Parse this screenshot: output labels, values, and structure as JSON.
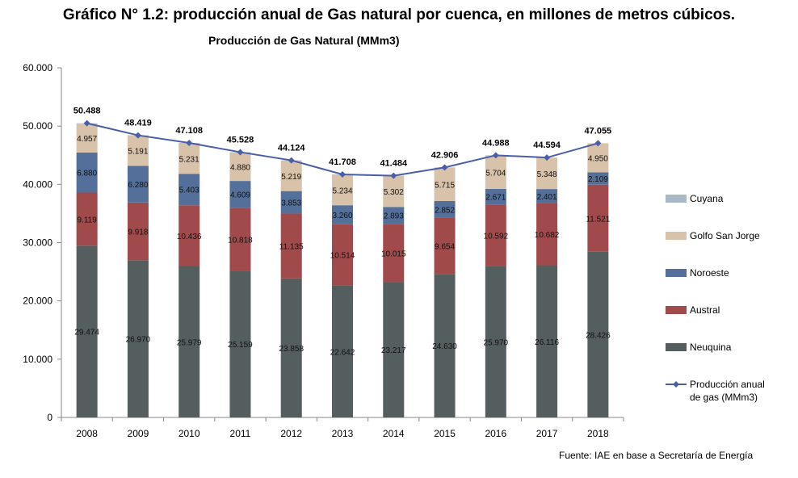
{
  "title": "Gráfico N° 1.2: producción anual de Gas natural por cuenca, en millones de metros cúbicos.",
  "source": "Fuente: IAE en base a Secretaría de Energía",
  "chart_data": {
    "type": "bar",
    "stacked": true,
    "title": "Producción de Gas Natural (MMm3)",
    "categories": [
      "2008",
      "2009",
      "2010",
      "2011",
      "2012",
      "2013",
      "2014",
      "2015",
      "2016",
      "2017",
      "2018"
    ],
    "ylim": [
      0,
      60000
    ],
    "yticks": [
      0,
      10000,
      20000,
      30000,
      40000,
      50000,
      60000
    ],
    "ytick_labels": [
      "0",
      "10.000",
      "20.000",
      "30.000",
      "40.000",
      "50.000",
      "60.000"
    ],
    "legend_position": "right",
    "series": [
      {
        "name": "Neuquina",
        "color": "#555e5e",
        "values": [
          29474,
          26970,
          25979,
          25159,
          23858,
          22642,
          23217,
          24630,
          25970,
          26116,
          28426
        ],
        "labels": [
          "29.474",
          "26.970",
          "25.979",
          "25.159",
          "23.858",
          "22.642",
          "23.217",
          "24.630",
          "25.970",
          "26.116",
          "28.426"
        ]
      },
      {
        "name": "Austral",
        "color": "#a14a4c",
        "values": [
          9119,
          9918,
          10436,
          10818,
          11135,
          10514,
          10015,
          9654,
          10592,
          10682,
          11521
        ],
        "labels": [
          "9.119",
          "9.918",
          "10.436",
          "10.818",
          "11.135",
          "10.514",
          "10.015",
          "9.654",
          "10.592",
          "10.682",
          "11.521"
        ]
      },
      {
        "name": "Noroeste",
        "color": "#54709a",
        "values": [
          6880,
          6280,
          5403,
          4609,
          3853,
          3260,
          2893,
          2852,
          2671,
          2401,
          2109
        ],
        "labels": [
          "6.880",
          "6.280",
          "5.403",
          "4.609",
          "3.853",
          "3.260",
          "2.893",
          "2.852",
          "2.671",
          "2.401",
          "2.109"
        ]
      },
      {
        "name": "Golfo San Jorge",
        "color": "#d8c2aa",
        "values": [
          4957,
          5191,
          5231,
          4880,
          5219,
          5234,
          5302,
          5715,
          5704,
          5348,
          4950
        ],
        "labels": [
          "4.957",
          "5.191",
          "5.231",
          "4.880",
          "5.219",
          "5.234",
          "5.302",
          "5.715",
          "5.704",
          "5.348",
          "4.950"
        ]
      },
      {
        "name": "Cuyana",
        "color": "#a9b8c6",
        "values": [
          58,
          60,
          59,
          62,
          59,
          58,
          57,
          55,
          51,
          47,
          49
        ],
        "labels": []
      }
    ],
    "line": {
      "name": "Producción anual de gas (MMm3)",
      "name_lines": [
        "Producción anual",
        "de gas (MMm3)"
      ],
      "color": "#4a5ea8",
      "values": [
        50488,
        48419,
        47108,
        45528,
        44124,
        41708,
        41484,
        42906,
        44988,
        44594,
        47055
      ],
      "labels": [
        "50.488",
        "48.419",
        "47.108",
        "45.528",
        "44.124",
        "41.708",
        "41.484",
        "42.906",
        "44.988",
        "44.594",
        "47.055"
      ]
    },
    "legend_order": [
      "Cuyana",
      "Golfo San Jorge",
      "Noroeste",
      "Austral",
      "Neuquina",
      "Producción anual de gas (MMm3)"
    ]
  }
}
